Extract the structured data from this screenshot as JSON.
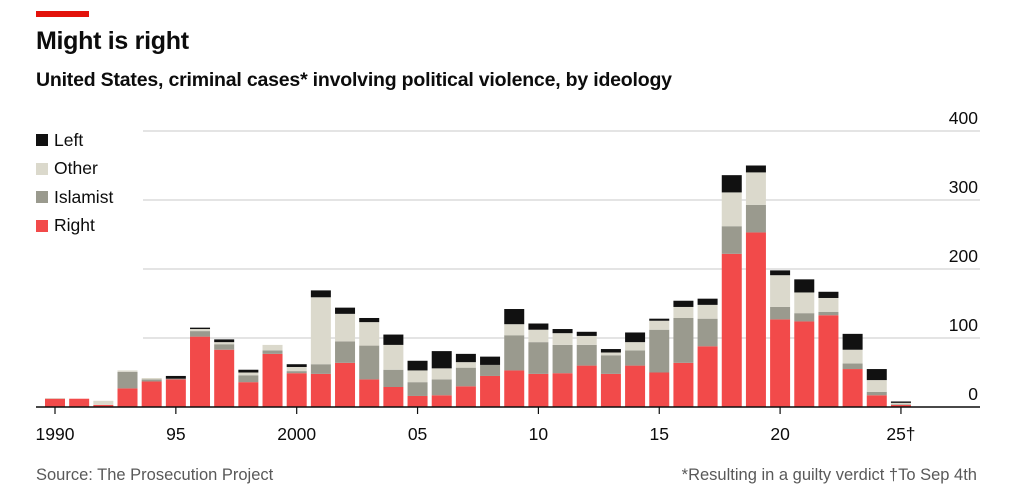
{
  "header": {
    "title": "Might is right",
    "subtitle": "United States, criminal cases* involving political violence, by ideology"
  },
  "footer": {
    "source": "Source: The Prosecution Project",
    "footnote": "*Resulting in a guilty verdict †To Sep 4th"
  },
  "colors": {
    "accent": "#e3120b",
    "Right": "#f24a4a",
    "Islamist": "#9a9a8e",
    "Other": "#dbd9cc",
    "Left": "#111111",
    "grid": "#c9c9c9",
    "axis": "#0c0c0c"
  },
  "chart_data": {
    "type": "bar",
    "stacked": true,
    "categories": [
      "1990",
      "1991",
      "1992",
      "1993",
      "1994",
      "1995",
      "1996",
      "1997",
      "1998",
      "1999",
      "2000",
      "2001",
      "2002",
      "2003",
      "2004",
      "2005",
      "2006",
      "2007",
      "2008",
      "2009",
      "2010",
      "2011",
      "2012",
      "2013",
      "2014",
      "2015",
      "2016",
      "2017",
      "2018",
      "2019",
      "2020",
      "2021",
      "2022",
      "2023",
      "2024",
      "2025"
    ],
    "x_tick_labels": [
      {
        "index": 0,
        "label": "1990"
      },
      {
        "index": 5,
        "label": "95"
      },
      {
        "index": 10,
        "label": "2000"
      },
      {
        "index": 15,
        "label": "05"
      },
      {
        "index": 20,
        "label": "10"
      },
      {
        "index": 25,
        "label": "15"
      },
      {
        "index": 30,
        "label": "20"
      },
      {
        "index": 35,
        "label": "25†"
      }
    ],
    "y_ticks": [
      0,
      100,
      200,
      300,
      400
    ],
    "ylim": [
      0,
      400
    ],
    "grid": true,
    "legend_position": "top-left",
    "series": [
      {
        "name": "Right",
        "values": [
          12,
          12,
          3,
          27,
          37,
          40,
          102,
          83,
          36,
          77,
          49,
          48,
          64,
          40,
          29,
          16,
          17,
          30,
          45,
          53,
          48,
          49,
          60,
          48,
          60,
          50,
          64,
          88,
          222,
          253,
          127,
          124,
          133,
          55,
          17,
          3
        ]
      },
      {
        "name": "Islamist",
        "values": [
          0,
          0,
          0,
          24,
          3,
          1,
          8,
          8,
          10,
          5,
          3,
          14,
          31,
          49,
          25,
          20,
          23,
          27,
          16,
          51,
          46,
          41,
          30,
          27,
          22,
          62,
          65,
          40,
          40,
          40,
          18,
          12,
          5,
          8,
          5,
          1
        ]
      },
      {
        "name": "Other",
        "values": [
          1,
          0,
          6,
          2,
          2,
          0,
          3,
          3,
          4,
          8,
          6,
          97,
          40,
          34,
          36,
          17,
          16,
          8,
          0,
          16,
          18,
          17,
          13,
          4,
          12,
          13,
          16,
          20,
          49,
          47,
          46,
          30,
          20,
          20,
          17,
          2
        ]
      },
      {
        "name": "Left",
        "values": [
          0,
          0,
          0,
          0,
          0,
          4,
          2,
          4,
          4,
          0,
          4,
          10,
          9,
          6,
          15,
          14,
          25,
          12,
          12,
          22,
          9,
          6,
          6,
          5,
          14,
          3,
          9,
          9,
          25,
          10,
          7,
          19,
          9,
          23,
          16,
          2
        ]
      }
    ]
  }
}
